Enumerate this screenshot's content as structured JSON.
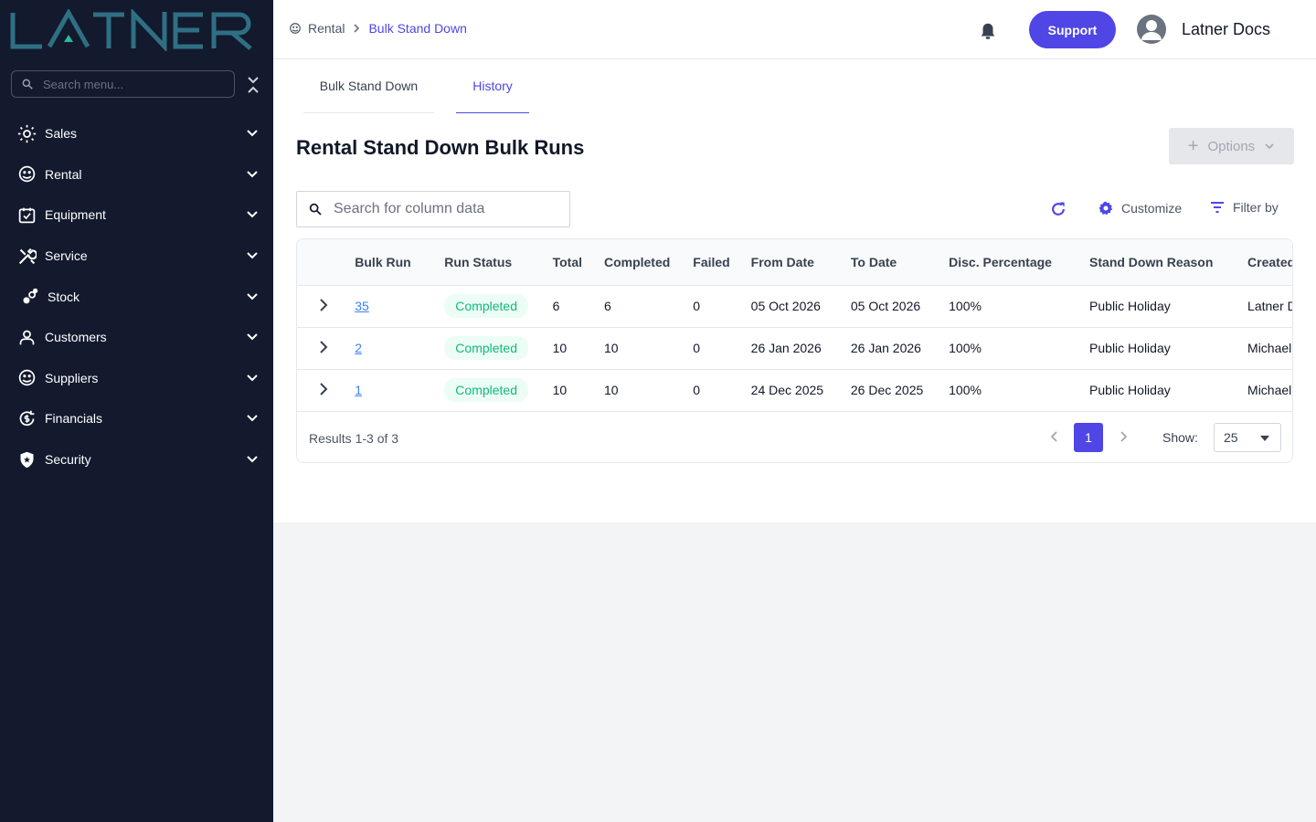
{
  "brand": {
    "logo_text": "LATNER"
  },
  "sidebar": {
    "search_placeholder": "Search menu...",
    "items": [
      {
        "label": "Sales",
        "icon": "sales-icon"
      },
      {
        "label": "Rental",
        "icon": "rental-icon"
      },
      {
        "label": "Equipment",
        "icon": "equipment-icon"
      },
      {
        "label": "Service",
        "icon": "service-icon"
      },
      {
        "label": "Stock",
        "icon": "stock-icon"
      },
      {
        "label": "Customers",
        "icon": "customers-icon"
      },
      {
        "label": "Suppliers",
        "icon": "suppliers-icon"
      },
      {
        "label": "Financials",
        "icon": "financials-icon"
      },
      {
        "label": "Security",
        "icon": "security-icon"
      }
    ]
  },
  "header": {
    "breadcrumb": {
      "home": "Rental",
      "current": "Bulk Stand Down"
    },
    "support_label": "Support",
    "user_name": "Latner Docs"
  },
  "main": {
    "tabs": [
      {
        "label": "Bulk Stand Down"
      },
      {
        "label": "History"
      }
    ],
    "title": "Rental Stand Down Bulk Runs",
    "options_label": "Options",
    "search_placeholder": "Search for column data",
    "customize_label": "Customize",
    "filter_label": "Filter by"
  },
  "table": {
    "columns": [
      "Bulk Run",
      "Run Status",
      "Total",
      "Completed",
      "Failed",
      "From Date",
      "To Date",
      "Disc. Percentage",
      "Stand Down Reason",
      "Created By"
    ],
    "rows": [
      {
        "bulk_run": "35",
        "status": "Completed",
        "total": "6",
        "completed": "6",
        "failed": "0",
        "from": "05 Oct 2026",
        "to": "05 Oct 2026",
        "disc": "100%",
        "reason": "Public Holiday",
        "created_by": "Latner Docs"
      },
      {
        "bulk_run": "2",
        "status": "Completed",
        "total": "10",
        "completed": "10",
        "failed": "0",
        "from": "26 Jan 2026",
        "to": "26 Jan 2026",
        "disc": "100%",
        "reason": "Public Holiday",
        "created_by": "Michael"
      },
      {
        "bulk_run": "1",
        "status": "Completed",
        "total": "10",
        "completed": "10",
        "failed": "0",
        "from": "24 Dec 2025",
        "to": "26 Dec 2025",
        "disc": "100%",
        "reason": "Public Holiday",
        "created_by": "Michael"
      }
    ],
    "results_text": "Results 1-3 of 3",
    "current_page": "1",
    "show_label": "Show:",
    "page_size": "25"
  },
  "colors": {
    "accent": "#4f46e5",
    "sidebar_bg": "#131a2e",
    "success": "#10b981",
    "link": "#3b82f6"
  }
}
